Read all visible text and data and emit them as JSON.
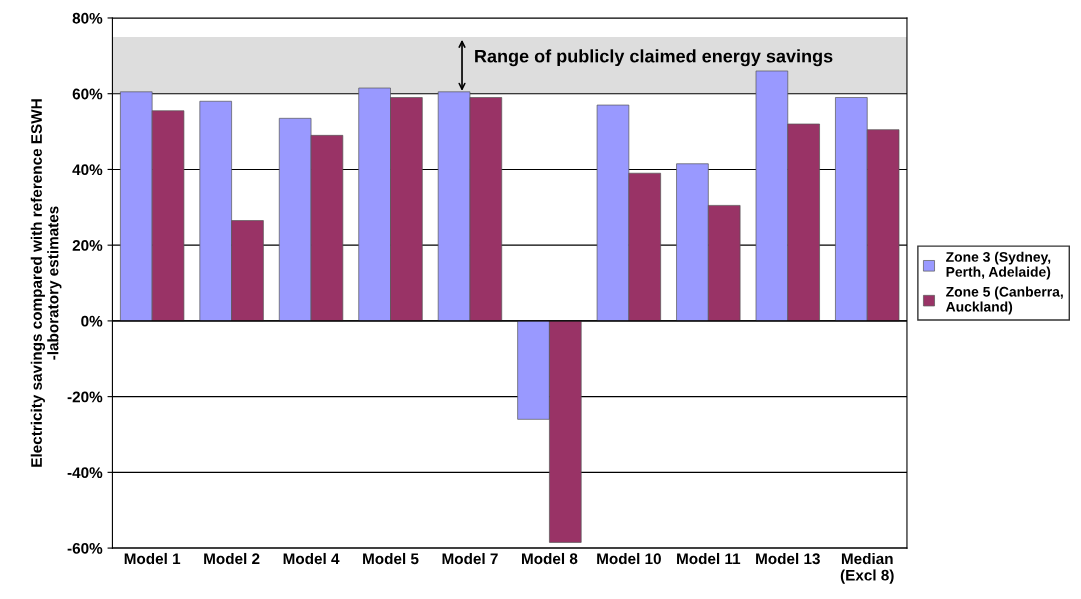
{
  "chart_data": {
    "type": "bar",
    "ylabel": "Electricity savings compared with reference ESWH\n-laboratory estimates",
    "categories": [
      "Model 1",
      "Model 2",
      "Model 4",
      "Model 5",
      "Model 7",
      "Model 8",
      "Model 10",
      "Model 11",
      "Model 13",
      "Median\n(Excl 8)"
    ],
    "series": [
      {
        "name": "Zone 3 (Sydney,\nPerth, Adelaide)",
        "color": "#9999ff",
        "values": [
          60.5,
          58,
          53.5,
          61.5,
          60.5,
          -26,
          57,
          41.5,
          66,
          59
        ]
      },
      {
        "name": "Zone 5 (Canberra,\nAuckland)",
        "color": "#993366",
        "values": [
          55.5,
          26.5,
          49,
          59,
          59,
          -58.5,
          39,
          30.5,
          52,
          50.5
        ]
      }
    ],
    "ylim": [
      -60,
      80
    ],
    "yticks": [
      {
        "value": -60,
        "label": "-60%"
      },
      {
        "value": -40,
        "label": "-40%"
      },
      {
        "value": -20,
        "label": "-20%"
      },
      {
        "value": 0,
        "label": "0%"
      },
      {
        "value": 20,
        "label": "20%"
      },
      {
        "value": 40,
        "label": "40%"
      },
      {
        "value": 60,
        "label": "60%"
      },
      {
        "value": 80,
        "label": "80%"
      }
    ],
    "bands": [
      {
        "axis": "y",
        "from": 60,
        "to": 75,
        "label": "Range of publicly claimed energy savings",
        "color": "#dddddd"
      }
    ],
    "grid": "y",
    "legend": "right"
  }
}
